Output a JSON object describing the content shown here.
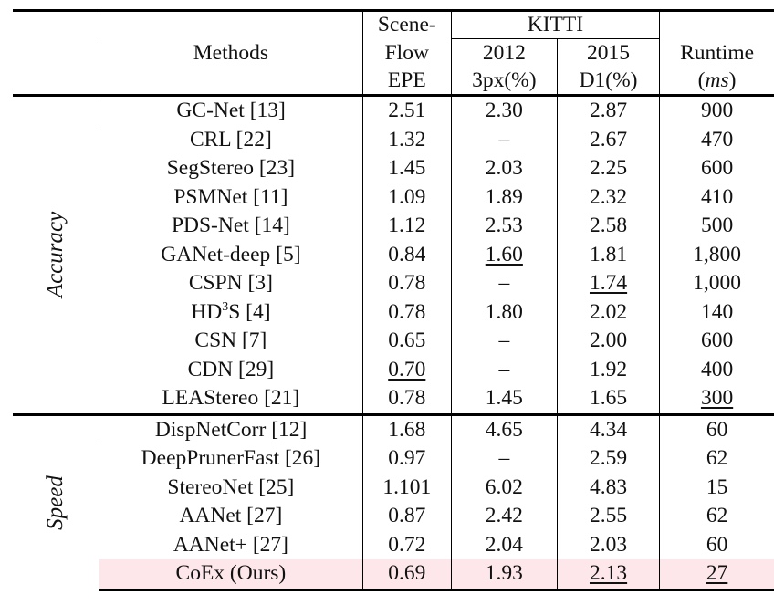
{
  "header": {
    "methods": "Methods",
    "sceneflow_line1": "Scene-",
    "sceneflow_line2": "Flow",
    "sceneflow_metric": "EPE",
    "kitti": "KITTI",
    "kitti2012": "2012",
    "kitti2012_metric": "3px(%)",
    "kitti2015": "2015",
    "kitti2015_metric": "D1(%)",
    "runtime": "Runtime",
    "runtime_unit": "ms",
    "runtime_unit_open": "(",
    "runtime_unit_close": ")"
  },
  "groups": {
    "accuracy": "Accuracy",
    "speed": "Speed"
  },
  "accuracy_rows": [
    {
      "method": "GC-Net [13]",
      "epe": "2.51",
      "k2012": "2.30",
      "k2015": "2.87",
      "runtime": "900"
    },
    {
      "method": "CRL [22]",
      "epe": "1.32",
      "k2012": "–",
      "k2015": "2.67",
      "runtime": "470"
    },
    {
      "method": "SegStereo [23]",
      "epe": "1.45",
      "k2012": "2.03",
      "k2015": "2.25",
      "runtime": "600"
    },
    {
      "method": "PSMNet [11]",
      "epe": "1.09",
      "k2012": "1.89",
      "k2015": "2.32",
      "runtime": "410"
    },
    {
      "method": "PDS-Net [14]",
      "epe": "1.12",
      "k2012": "2.53",
      "k2015": "2.58",
      "runtime": "500"
    },
    {
      "method": "GANet-deep [5]",
      "epe": "0.84",
      "k2012": "1.60",
      "k2015": "1.81",
      "runtime": "1,800"
    },
    {
      "method": "CSPN [3]",
      "epe": "0.78",
      "k2012": "–",
      "k2015": "1.74",
      "runtime": "1,000"
    },
    {
      "method_pre": "HD",
      "method_sup": "3",
      "method_post": "S [4]",
      "epe": "0.78",
      "k2012": "1.80",
      "k2015": "2.02",
      "runtime": "140"
    },
    {
      "method": "CSN [7]",
      "epe": "0.65",
      "k2012": "–",
      "k2015": "2.00",
      "runtime": "600"
    },
    {
      "method": "CDN [29]",
      "epe": "0.70",
      "k2012": "–",
      "k2015": "1.92",
      "runtime": "400"
    },
    {
      "method": "LEAStereo [21]",
      "epe": "0.78",
      "k2012": "1.45",
      "k2015": "1.65",
      "runtime": "300"
    }
  ],
  "speed_rows": [
    {
      "method": "DispNetCorr [12]",
      "epe": "1.68",
      "k2012": "4.65",
      "k2015": "4.34",
      "runtime": "60"
    },
    {
      "method": "DeepPrunerFast [26]",
      "epe": "0.97",
      "k2012": "–",
      "k2015": "2.59",
      "runtime": "62"
    },
    {
      "method": "StereoNet [25]",
      "epe": "1.101",
      "k2012": "6.02",
      "k2015": "4.83",
      "runtime": "15"
    },
    {
      "method": "AANet [27]",
      "epe": "0.87",
      "k2012": "2.42",
      "k2015": "2.55",
      "runtime": "62"
    },
    {
      "method": "AANet+ [27]",
      "epe": "0.72",
      "k2012": "2.04",
      "k2015": "2.03",
      "runtime": "60"
    },
    {
      "method": "CoEx (Ours)",
      "epe": "0.69",
      "k2012": "1.93",
      "k2015": "2.13",
      "runtime": "27"
    }
  ],
  "highlight_color": "#fde7ea"
}
